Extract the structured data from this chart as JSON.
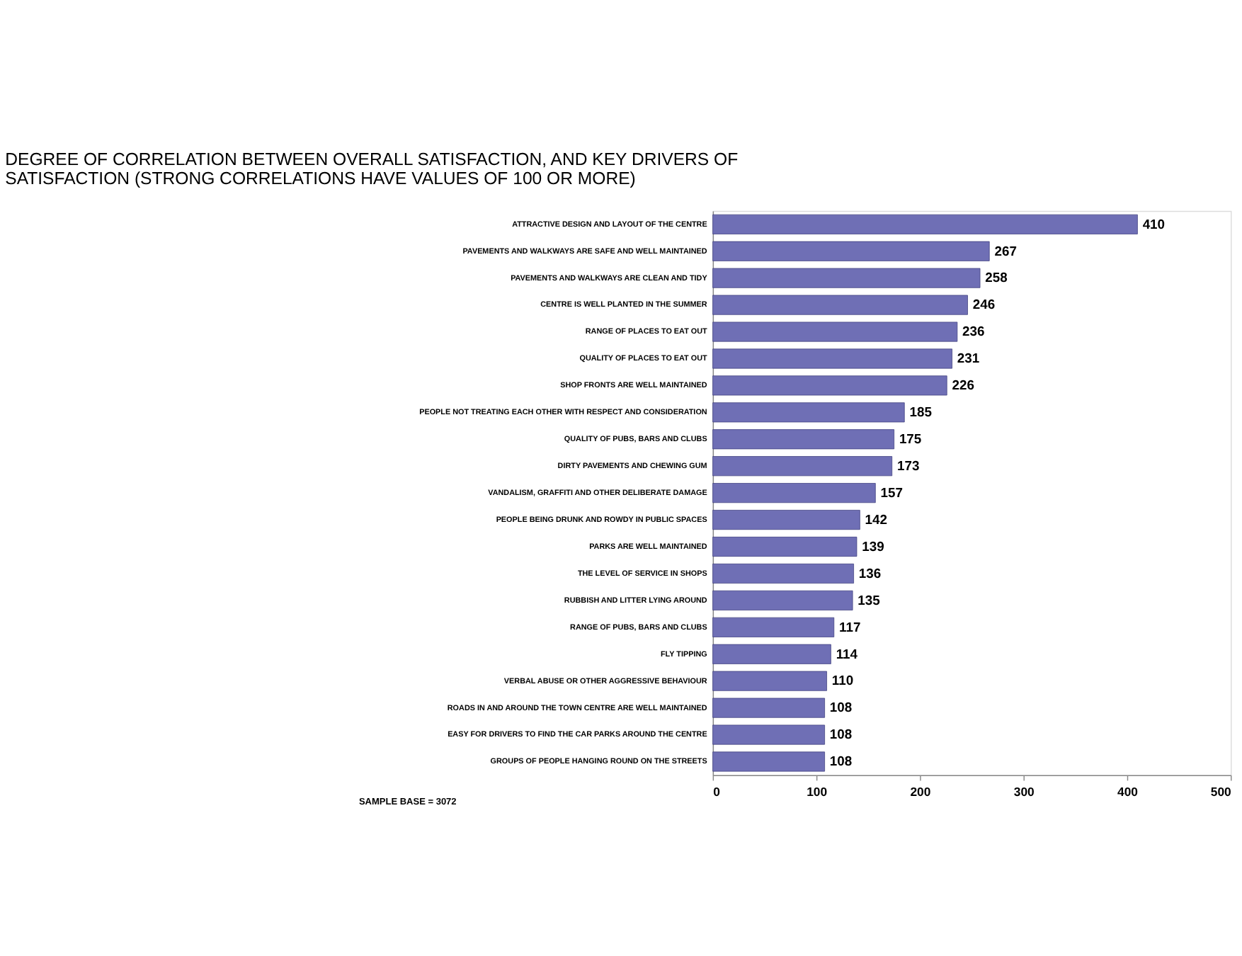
{
  "chart_data": {
    "type": "bar",
    "orientation": "horizontal",
    "title": "DEGREE OF CORRELATION BETWEEN OVERALL SATISFACTION, AND KEY DRIVERS OF SATISFACTION (STRONG CORRELATIONS HAVE VALUES OF 100 OR MORE)",
    "categories": [
      "ATTRACTIVE DESIGN AND LAYOUT OF THE CENTRE",
      "PAVEMENTS AND WALKWAYS ARE SAFE AND WELL MAINTAINED",
      "PAVEMENTS AND WALKWAYS ARE CLEAN AND TIDY",
      "CENTRE IS WELL PLANTED IN THE SUMMER",
      "RANGE OF PLACES TO EAT OUT",
      "QUALITY OF PLACES TO EAT OUT",
      "SHOP FRONTS ARE WELL MAINTAINED",
      "PEOPLE NOT TREATING EACH OTHER WITH RESPECT AND CONSIDERATION",
      "QUALITY OF PUBS, BARS AND CLUBS",
      "DIRTY PAVEMENTS AND CHEWING GUM",
      "VANDALISM, GRAFFITI AND OTHER DELIBERATE DAMAGE",
      "PEOPLE BEING DRUNK AND ROWDY IN PUBLIC SPACES",
      "PARKS ARE WELL MAINTAINED",
      "THE LEVEL OF SERVICE IN SHOPS",
      "RUBBISH AND LITTER LYING AROUND",
      "RANGE OF PUBS, BARS AND CLUBS",
      "FLY TIPPING",
      "VERBAL ABUSE OR OTHER AGGRESSIVE BEHAVIOUR",
      "ROADS IN AND AROUND THE TOWN CENTRE ARE WELL MAINTAINED",
      "EASY FOR DRIVERS TO FIND THE CAR PARKS AROUND THE CENTRE",
      "GROUPS OF PEOPLE HANGING ROUND ON THE STREETS"
    ],
    "values": [
      410,
      267,
      258,
      246,
      236,
      231,
      226,
      185,
      175,
      173,
      157,
      142,
      139,
      136,
      135,
      117,
      114,
      110,
      108,
      108,
      108
    ],
    "color": "#6f6fb5",
    "xlim": [
      0,
      500
    ],
    "xticks": [
      0,
      100,
      200,
      300,
      400,
      500
    ],
    "grid": false,
    "data_labels": true,
    "annotations": [
      "SAMPLE BASE = 3072"
    ]
  }
}
